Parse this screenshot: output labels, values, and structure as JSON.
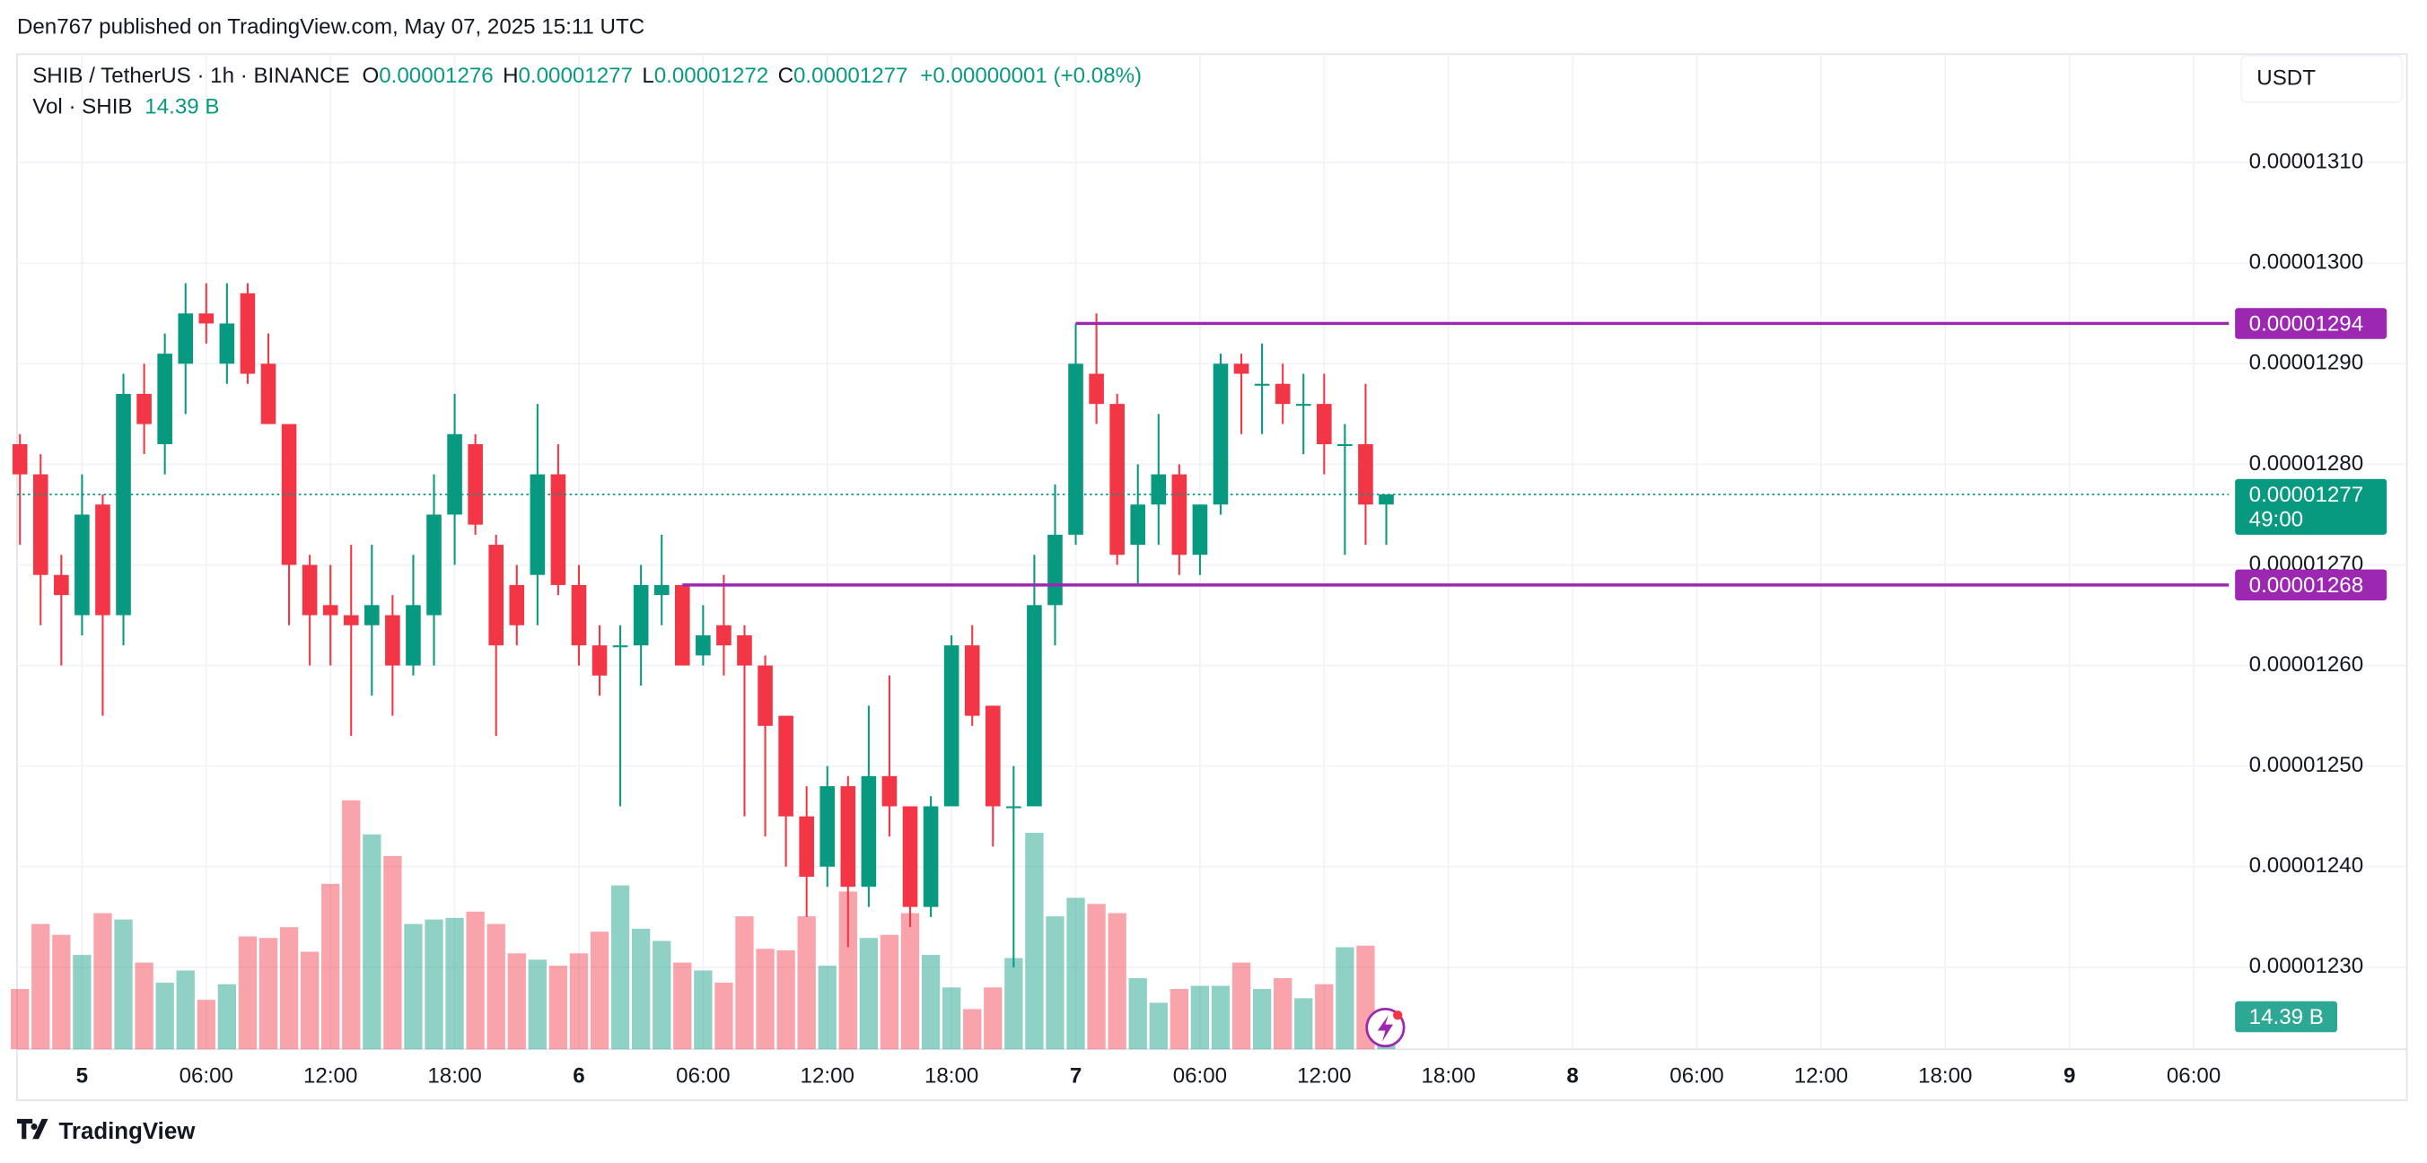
{
  "chart_data": {
    "type": "candlestick",
    "published": "Den767 published on TradingView.com, May 07, 2025 15:11 UTC",
    "header": {
      "symbol": "SHIB / TetherUS · 1h · BINANCE",
      "ohlc": [
        {
          "k": "O",
          "v": "0.00001276"
        },
        {
          "k": "H",
          "v": "0.00001277"
        },
        {
          "k": "L",
          "v": "0.00001272"
        },
        {
          "k": "C",
          "v": "0.00001277"
        }
      ],
      "change": "+0.00000001 (+0.08%)",
      "vol_name": "Vol · SHIB",
      "vol_value": "14.39 B"
    },
    "currency": "USDT",
    "brand": "TradingView",
    "up_color": "#089981",
    "down_color": "#f23645",
    "level_color": "#9c27b0",
    "candles": [
      {
        "o": 1.282e-05,
        "h": 1.283e-05,
        "l": 1.272e-05,
        "c": 1.279e-05,
        "v": 26.7
      },
      {
        "o": 1.279e-05,
        "h": 1.281e-05,
        "l": 1.264e-05,
        "c": 1.269e-05,
        "v": 55.5
      },
      {
        "o": 1.269e-05,
        "h": 1.271e-05,
        "l": 1.26e-05,
        "c": 1.267e-05,
        "v": 50.7
      },
      {
        "o": 1.265e-05,
        "h": 1.279e-05,
        "l": 1.263e-05,
        "c": 1.275e-05,
        "v": 41.8
      },
      {
        "o": 1.276e-05,
        "h": 1.277e-05,
        "l": 1.255e-05,
        "c": 1.265e-05,
        "v": 60.3
      },
      {
        "o": 1.265e-05,
        "h": 1.289e-05,
        "l": 1.262e-05,
        "c": 1.287e-05,
        "v": 57.5
      },
      {
        "o": 1.287e-05,
        "h": 1.29e-05,
        "l": 1.281e-05,
        "c": 1.284e-05,
        "v": 38.4
      },
      {
        "o": 1.282e-05,
        "h": 1.293e-05,
        "l": 1.279e-05,
        "c": 1.291e-05,
        "v": 29.5
      },
      {
        "o": 1.29e-05,
        "h": 1.298e-05,
        "l": 1.285e-05,
        "c": 1.295e-05,
        "v": 34.9
      },
      {
        "o": 1.295e-05,
        "h": 1.298e-05,
        "l": 1.292e-05,
        "c": 1.294e-05,
        "v": 21.9
      },
      {
        "o": 1.29e-05,
        "h": 1.298e-05,
        "l": 1.288e-05,
        "c": 1.294e-05,
        "v": 28.8
      },
      {
        "o": 1.297e-05,
        "h": 1.298e-05,
        "l": 1.288e-05,
        "c": 1.289e-05,
        "v": 50.0
      },
      {
        "o": 1.29e-05,
        "h": 1.293e-05,
        "l": 1.284e-05,
        "c": 1.284e-05,
        "v": 49.3
      },
      {
        "o": 1.284e-05,
        "h": 1.284e-05,
        "l": 1.264e-05,
        "c": 1.27e-05,
        "v": 54.1
      },
      {
        "o": 1.27e-05,
        "h": 1.271e-05,
        "l": 1.26e-05,
        "c": 1.265e-05,
        "v": 43.2
      },
      {
        "o": 1.266e-05,
        "h": 1.27e-05,
        "l": 1.26e-05,
        "c": 1.265e-05,
        "v": 73.3
      },
      {
        "o": 1.265e-05,
        "h": 1.272e-05,
        "l": 1.253e-05,
        "c": 1.264e-05,
        "v": 110.3
      },
      {
        "o": 1.264e-05,
        "h": 1.272e-05,
        "l": 1.257e-05,
        "c": 1.266e-05,
        "v": 95.2
      },
      {
        "o": 1.265e-05,
        "h": 1.267e-05,
        "l": 1.255e-05,
        "c": 1.26e-05,
        "v": 85.6
      },
      {
        "o": 1.26e-05,
        "h": 1.271e-05,
        "l": 1.259e-05,
        "c": 1.266e-05,
        "v": 55.5
      },
      {
        "o": 1.265e-05,
        "h": 1.279e-05,
        "l": 1.26e-05,
        "c": 1.275e-05,
        "v": 57.5
      },
      {
        "o": 1.275e-05,
        "h": 1.287e-05,
        "l": 1.27e-05,
        "c": 1.283e-05,
        "v": 58.2
      },
      {
        "o": 1.282e-05,
        "h": 1.283e-05,
        "l": 1.273e-05,
        "c": 1.274e-05,
        "v": 61.0
      },
      {
        "o": 1.272e-05,
        "h": 1.273e-05,
        "l": 1.253e-05,
        "c": 1.262e-05,
        "v": 55.5
      },
      {
        "o": 1.268e-05,
        "h": 1.27e-05,
        "l": 1.262e-05,
        "c": 1.264e-05,
        "v": 42.5
      },
      {
        "o": 1.269e-05,
        "h": 1.286e-05,
        "l": 1.264e-05,
        "c": 1.279e-05,
        "v": 39.7
      },
      {
        "o": 1.279e-05,
        "h": 1.282e-05,
        "l": 1.267e-05,
        "c": 1.268e-05,
        "v": 37.0
      },
      {
        "o": 1.268e-05,
        "h": 1.27e-05,
        "l": 1.26e-05,
        "c": 1.262e-05,
        "v": 42.5
      },
      {
        "o": 1.262e-05,
        "h": 1.264e-05,
        "l": 1.257e-05,
        "c": 1.259e-05,
        "v": 52.1
      },
      {
        "o": 1.262e-05,
        "h": 1.264e-05,
        "l": 1.246e-05,
        "c": 1.262e-05,
        "v": 72.6
      },
      {
        "o": 1.262e-05,
        "h": 1.27e-05,
        "l": 1.258e-05,
        "c": 1.268e-05,
        "v": 53.4
      },
      {
        "o": 1.267e-05,
        "h": 1.273e-05,
        "l": 1.264e-05,
        "c": 1.268e-05,
        "v": 48.0
      },
      {
        "o": 1.268e-05,
        "h": 1.268e-05,
        "l": 1.26e-05,
        "c": 1.26e-05,
        "v": 38.4
      },
      {
        "o": 1.261e-05,
        "h": 1.266e-05,
        "l": 1.26e-05,
        "c": 1.263e-05,
        "v": 34.9
      },
      {
        "o": 1.264e-05,
        "h": 1.269e-05,
        "l": 1.259e-05,
        "c": 1.262e-05,
        "v": 29.5
      },
      {
        "o": 1.263e-05,
        "h": 1.264e-05,
        "l": 1.245e-05,
        "c": 1.26e-05,
        "v": 58.9
      },
      {
        "o": 1.26e-05,
        "h": 1.261e-05,
        "l": 1.243e-05,
        "c": 1.254e-05,
        "v": 44.5
      },
      {
        "o": 1.255e-05,
        "h": 1.255e-05,
        "l": 1.24e-05,
        "c": 1.245e-05,
        "v": 43.8
      },
      {
        "o": 1.245e-05,
        "h": 1.248e-05,
        "l": 1.235e-05,
        "c": 1.239e-05,
        "v": 58.9
      },
      {
        "o": 1.24e-05,
        "h": 1.25e-05,
        "l": 1.238e-05,
        "c": 1.248e-05,
        "v": 37.0
      },
      {
        "o": 1.248e-05,
        "h": 1.249e-05,
        "l": 1.232e-05,
        "c": 1.238e-05,
        "v": 69.9
      },
      {
        "o": 1.238e-05,
        "h": 1.256e-05,
        "l": 1.236e-05,
        "c": 1.249e-05,
        "v": 49.3
      },
      {
        "o": 1.249e-05,
        "h": 1.259e-05,
        "l": 1.243e-05,
        "c": 1.246e-05,
        "v": 50.7
      },
      {
        "o": 1.246e-05,
        "h": 1.246e-05,
        "l": 1.234e-05,
        "c": 1.236e-05,
        "v": 60.3
      },
      {
        "o": 1.236e-05,
        "h": 1.247e-05,
        "l": 1.235e-05,
        "c": 1.246e-05,
        "v": 41.8
      },
      {
        "o": 1.246e-05,
        "h": 1.263e-05,
        "l": 1.246e-05,
        "c": 1.262e-05,
        "v": 27.4
      },
      {
        "o": 1.262e-05,
        "h": 1.264e-05,
        "l": 1.254e-05,
        "c": 1.255e-05,
        "v": 17.8
      },
      {
        "o": 1.256e-05,
        "h": 1.256e-05,
        "l": 1.242e-05,
        "c": 1.246e-05,
        "v": 27.4
      },
      {
        "o": 1.246e-05,
        "h": 1.25e-05,
        "l": 1.23e-05,
        "c": 1.246e-05,
        "v": 40.4
      },
      {
        "o": 1.246e-05,
        "h": 1.271e-05,
        "l": 1.246e-05,
        "c": 1.266e-05,
        "v": 95.9
      },
      {
        "o": 1.266e-05,
        "h": 1.278e-05,
        "l": 1.262e-05,
        "c": 1.273e-05,
        "v": 58.9
      },
      {
        "o": 1.273e-05,
        "h": 1.294e-05,
        "l": 1.272e-05,
        "c": 1.29e-05,
        "v": 67.1
      },
      {
        "o": 1.289e-05,
        "h": 1.295e-05,
        "l": 1.284e-05,
        "c": 1.286e-05,
        "v": 64.4
      },
      {
        "o": 1.286e-05,
        "h": 1.287e-05,
        "l": 1.27e-05,
        "c": 1.271e-05,
        "v": 60.3
      },
      {
        "o": 1.272e-05,
        "h": 1.28e-05,
        "l": 1.268e-05,
        "c": 1.276e-05,
        "v": 31.5
      },
      {
        "o": 1.276e-05,
        "h": 1.285e-05,
        "l": 1.272e-05,
        "c": 1.279e-05,
        "v": 20.6
      },
      {
        "o": 1.279e-05,
        "h": 1.28e-05,
        "l": 1.269e-05,
        "c": 1.271e-05,
        "v": 26.7
      },
      {
        "o": 1.271e-05,
        "h": 1.276e-05,
        "l": 1.269e-05,
        "c": 1.276e-05,
        "v": 28.1
      },
      {
        "o": 1.276e-05,
        "h": 1.291e-05,
        "l": 1.275e-05,
        "c": 1.29e-05,
        "v": 28.1
      },
      {
        "o": 1.29e-05,
        "h": 1.291e-05,
        "l": 1.283e-05,
        "c": 1.289e-05,
        "v": 38.4
      },
      {
        "o": 1.288e-05,
        "h": 1.292e-05,
        "l": 1.283e-05,
        "c": 1.288e-05,
        "v": 26.7
      },
      {
        "o": 1.288e-05,
        "h": 1.29e-05,
        "l": 1.284e-05,
        "c": 1.286e-05,
        "v": 31.5
      },
      {
        "o": 1.286e-05,
        "h": 1.289e-05,
        "l": 1.281e-05,
        "c": 1.286e-05,
        "v": 22.6
      },
      {
        "o": 1.286e-05,
        "h": 1.289e-05,
        "l": 1.279e-05,
        "c": 1.282e-05,
        "v": 28.8
      },
      {
        "o": 1.282e-05,
        "h": 1.284e-05,
        "l": 1.271e-05,
        "c": 1.282e-05,
        "v": 45.2
      },
      {
        "o": 1.282e-05,
        "h": 1.288e-05,
        "l": 1.272e-05,
        "c": 1.276e-05,
        "v": 45.9
      },
      {
        "o": 1.276e-05,
        "h": 1.277e-05,
        "l": 1.272e-05,
        "c": 1.277e-05,
        "v": 14.39
      }
    ],
    "volume_label": "14.39 B",
    "ylim": [
      1.22185e-05,
      1.32077e-05
    ],
    "yticks": [
      {
        "value": 1.23e-05,
        "label": "0.00001230"
      },
      {
        "value": 1.24e-05,
        "label": "0.00001240"
      },
      {
        "value": 1.25e-05,
        "label": "0.00001250"
      },
      {
        "value": 1.26e-05,
        "label": "0.00001260"
      },
      {
        "value": 1.27e-05,
        "label": "0.00001270"
      },
      {
        "value": 1.28e-05,
        "label": "0.00001280"
      },
      {
        "value": 1.29e-05,
        "label": "0.00001290"
      },
      {
        "value": 1.3e-05,
        "label": "0.00001300"
      },
      {
        "value": 1.31e-05,
        "label": "0.00001310"
      }
    ],
    "vlim": [
      0,
      120
    ],
    "xlim": [
      -0.14,
      106.7
    ],
    "xticks": [
      {
        "value": 3,
        "label": "5"
      },
      {
        "value": 9,
        "label": "06:00"
      },
      {
        "value": 15,
        "label": "12:00"
      },
      {
        "value": 21,
        "label": "18:00"
      },
      {
        "value": 27,
        "label": "6"
      },
      {
        "value": 33,
        "label": "06:00"
      },
      {
        "value": 39,
        "label": "12:00"
      },
      {
        "value": 45,
        "label": "18:00"
      },
      {
        "value": 51,
        "label": "7"
      },
      {
        "value": 57,
        "label": "06:00"
      },
      {
        "value": 63,
        "label": "12:00"
      },
      {
        "value": 69,
        "label": "18:00"
      },
      {
        "value": 75,
        "label": "8"
      },
      {
        "value": 81,
        "label": "06:00"
      },
      {
        "value": 87,
        "label": "12:00"
      },
      {
        "value": 93,
        "label": "18:00"
      },
      {
        "value": 99,
        "label": "9"
      },
      {
        "value": 105,
        "label": "06:00"
      }
    ],
    "levels": [
      {
        "value": 1.294e-05,
        "label": "0.00001294"
      },
      {
        "value": 1.268e-05,
        "label": "0.00001268"
      }
    ],
    "last": {
      "value": 1.277e-05,
      "label": "0.00001277",
      "countdown": "49:00"
    },
    "grid": true
  }
}
